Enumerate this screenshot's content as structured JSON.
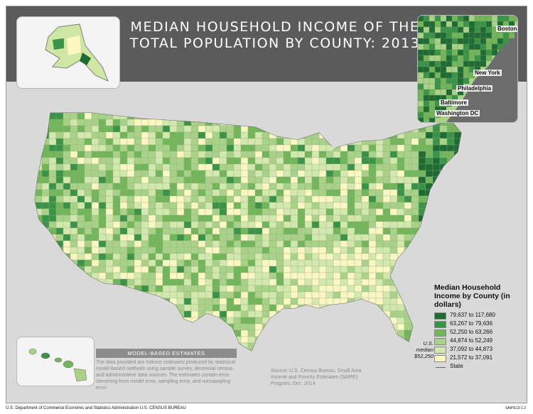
{
  "title": "MEDIAN HOUSEHOLD INCOME OF THE TOTAL POPULATION BY COUNTY: 2013",
  "cities": [
    "Boston",
    "New York",
    "Philadelphia",
    "Baltimore",
    "Washington DC"
  ],
  "legend": {
    "title": "Median Household Income by County (in dollars)",
    "classes": [
      {
        "range": "79,637 to 117,680",
        "color": "#1e6b34"
      },
      {
        "range": "63,267 to 79,636",
        "color": "#3a9448"
      },
      {
        "range": "52,250 to 63,266",
        "color": "#72b65a"
      },
      {
        "range": "44,874 to 52,249",
        "color": "#a8d287"
      },
      {
        "range": "37,092 to 44,873",
        "color": "#d2e8ad"
      },
      {
        "range": "21,572 to 37,091",
        "color": "#fbf7c3"
      }
    ],
    "state_label": "State",
    "us_median_label": "U.S. median",
    "us_median_value": "$52,250"
  },
  "model_based": {
    "heading": "MODEL-BASED ESTIMATES",
    "text": "The data provided are indirect estimates produced by statistical model-based methods using sample survey, decennial census, and administrative data sources. The estimates contain error stemming from model error, sampling error, and nonsampling error."
  },
  "source": "Source: U.S. Census Bureau, Small Area Income and Poverty Estimates (SAIPE) Program, Dec. 2014",
  "footer": {
    "agency": "U.S. Department of Commerce  Economic and Statistics Administration  U.S. CENSUS BUREAU",
    "code": "SAIPE13-1.2"
  }
}
